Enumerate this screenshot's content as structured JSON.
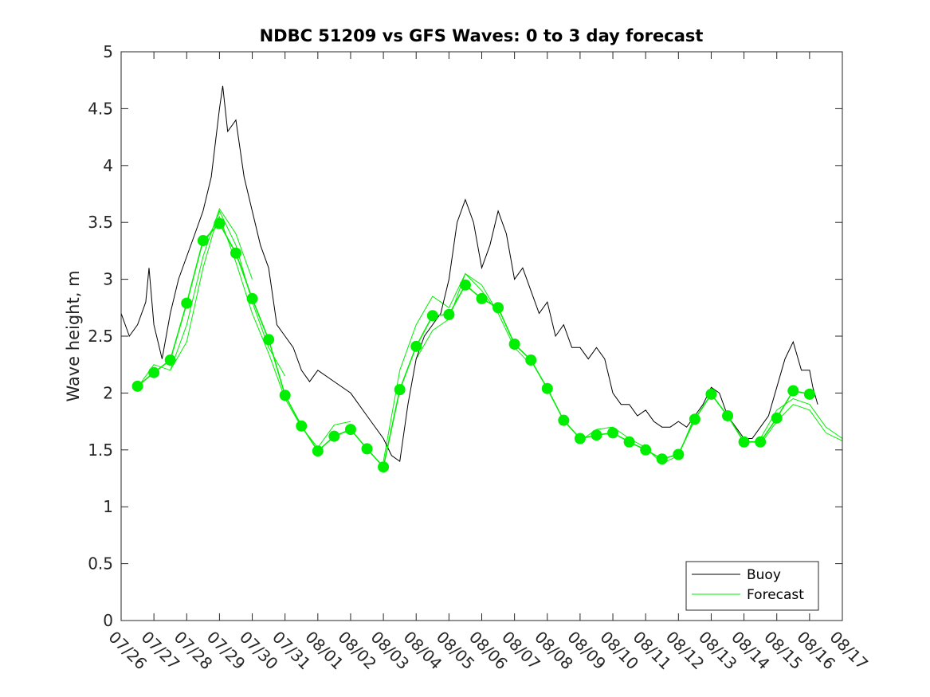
{
  "chart_data": {
    "type": "line",
    "title": "NDBC 51209 vs GFS Waves: 0 to 3 day forecast",
    "xlabel": "",
    "ylabel": "Wave height, m",
    "xlim": [
      0,
      22
    ],
    "ylim": [
      0,
      5
    ],
    "yticks": [
      0,
      0.5,
      1,
      1.5,
      2,
      2.5,
      3,
      3.5,
      4,
      4.5,
      5
    ],
    "ytick_labels": [
      "0",
      "0.5",
      "1",
      "1.5",
      "2",
      "2.5",
      "3",
      "3.5",
      "4",
      "4.5",
      "5"
    ],
    "xtick_labels": [
      "07/26",
      "07/27",
      "07/28",
      "07/29",
      "07/30",
      "07/31",
      "08/01",
      "08/02",
      "08/03",
      "08/04",
      "08/05",
      "08/06",
      "08/07",
      "08/08",
      "08/09",
      "08/10",
      "08/11",
      "08/12",
      "08/13",
      "08/14",
      "08/15",
      "08/16",
      "08/17"
    ],
    "legend": {
      "location": "bottom-right",
      "entries": [
        {
          "name": "Buoy",
          "color": "#000000"
        },
        {
          "name": "Forecast",
          "color": "#00ee00"
        }
      ]
    },
    "series": [
      {
        "name": "Buoy",
        "color": "#000000",
        "style": "thin noisy line",
        "x": [
          0.0,
          0.25,
          0.5,
          0.75,
          0.85,
          1.0,
          1.25,
          1.5,
          1.75,
          2.0,
          2.25,
          2.5,
          2.75,
          3.0,
          3.1,
          3.25,
          3.5,
          3.75,
          4.0,
          4.25,
          4.5,
          4.75,
          5.0,
          5.25,
          5.5,
          5.75,
          6.0,
          6.5,
          7.0,
          7.5,
          8.0,
          8.25,
          8.5,
          8.75,
          9.0,
          9.25,
          9.5,
          9.75,
          10.0,
          10.25,
          10.5,
          10.75,
          11.0,
          11.25,
          11.5,
          11.75,
          12.0,
          12.25,
          12.5,
          12.75,
          13.0,
          13.25,
          13.5,
          13.75,
          14.0,
          14.25,
          14.5,
          14.75,
          15.0,
          15.25,
          15.5,
          15.75,
          16.0,
          16.25,
          16.5,
          16.75,
          17.0,
          17.25,
          17.5,
          17.75,
          18.0,
          18.25,
          18.5,
          18.75,
          19.0,
          19.25,
          19.5,
          19.75,
          20.0,
          20.25,
          20.5,
          20.75,
          21.0,
          21.1,
          21.25
        ],
        "y": [
          2.7,
          2.5,
          2.6,
          2.8,
          3.1,
          2.6,
          2.3,
          2.7,
          3.0,
          3.2,
          3.4,
          3.6,
          3.9,
          4.5,
          4.7,
          4.3,
          4.4,
          3.9,
          3.6,
          3.3,
          3.1,
          2.6,
          2.5,
          2.4,
          2.2,
          2.1,
          2.2,
          2.1,
          2.0,
          1.8,
          1.6,
          1.45,
          1.4,
          1.9,
          2.3,
          2.5,
          2.6,
          2.7,
          3.0,
          3.5,
          3.7,
          3.5,
          3.1,
          3.3,
          3.6,
          3.4,
          3.0,
          3.1,
          2.9,
          2.7,
          2.8,
          2.5,
          2.6,
          2.4,
          2.4,
          2.3,
          2.4,
          2.3,
          2.0,
          1.9,
          1.9,
          1.8,
          1.85,
          1.75,
          1.7,
          1.7,
          1.75,
          1.7,
          1.8,
          1.9,
          2.05,
          2.0,
          1.8,
          1.7,
          1.6,
          1.6,
          1.7,
          1.8,
          2.05,
          2.3,
          2.45,
          2.2,
          2.2,
          2.05,
          1.9
        ]
      },
      {
        "name": "Forecast",
        "color": "#00ee00",
        "style": "line with markers every 12 h",
        "x": [
          0.5,
          1.0,
          1.5,
          2.0,
          2.5,
          3.0,
          3.5,
          4.0,
          4.5,
          5.0,
          5.5,
          6.0,
          6.5,
          7.0,
          7.5,
          8.0,
          8.5,
          9.0,
          9.5,
          10.0,
          10.5,
          11.0,
          11.5,
          12.0,
          12.5,
          13.0,
          13.5,
          14.0,
          14.5,
          15.0,
          15.5,
          16.0,
          16.5,
          17.0,
          17.5,
          18.0,
          18.5,
          19.0,
          19.5,
          20.0,
          20.5,
          21.0
        ],
        "y": [
          2.06,
          2.18,
          2.29,
          2.79,
          3.34,
          3.49,
          3.23,
          2.83,
          2.47,
          1.98,
          1.71,
          1.49,
          1.62,
          1.68,
          1.51,
          1.35,
          2.03,
          2.41,
          2.68,
          2.69,
          2.95,
          2.83,
          2.75,
          2.43,
          2.29,
          2.04,
          1.76,
          1.6,
          1.63,
          1.65,
          1.57,
          1.5,
          1.42,
          1.46,
          1.77,
          1.99,
          1.8,
          1.57,
          1.57,
          1.78,
          2.02,
          1.99
        ]
      }
    ],
    "forecast_ensemble": {
      "note": "additional thin forecast runs drawn without markers",
      "runs": [
        {
          "x": [
            0.5,
            1.0,
            1.5,
            2.0,
            2.5,
            3.0,
            3.5,
            4.0
          ],
          "y": [
            2.05,
            2.25,
            2.2,
            2.6,
            3.2,
            3.62,
            3.4,
            3.0
          ]
        },
        {
          "x": [
            1.5,
            2.0,
            2.5,
            3.0,
            3.5,
            4.0,
            4.5,
            5.0
          ],
          "y": [
            2.2,
            2.45,
            3.1,
            3.6,
            3.3,
            2.8,
            2.4,
            2.15
          ]
        },
        {
          "x": [
            2.5,
            3.0,
            3.5,
            4.0,
            4.5,
            5.0,
            5.5,
            6.0,
            6.5,
            7.0
          ],
          "y": [
            3.3,
            3.55,
            3.15,
            2.7,
            2.35,
            1.95,
            1.7,
            1.52,
            1.72,
            1.75
          ]
        },
        {
          "x": [
            8.0,
            8.5,
            9.0,
            9.5,
            10.0,
            10.5,
            11.0,
            11.5
          ],
          "y": [
            1.4,
            2.2,
            2.6,
            2.85,
            2.75,
            3.05,
            2.9,
            2.7
          ]
        },
        {
          "x": [
            9.0,
            9.5,
            10.0,
            10.5,
            11.0,
            11.5,
            12.0,
            12.5
          ],
          "y": [
            2.3,
            2.55,
            2.65,
            3.05,
            2.95,
            2.7,
            2.4,
            2.25
          ]
        },
        {
          "x": [
            14.0,
            14.5,
            15.0,
            15.5,
            16.0,
            16.5,
            17.0,
            17.5
          ],
          "y": [
            1.58,
            1.68,
            1.7,
            1.6,
            1.52,
            1.38,
            1.45,
            1.8
          ]
        },
        {
          "x": [
            19.5,
            20.0,
            20.5,
            21.0,
            21.5,
            22.0
          ],
          "y": [
            1.6,
            1.85,
            1.95,
            1.9,
            1.7,
            1.6
          ]
        },
        {
          "x": [
            19.5,
            20.0,
            20.5,
            21.0,
            21.5,
            22.0
          ],
          "y": [
            1.55,
            1.75,
            1.9,
            1.85,
            1.65,
            1.58
          ]
        }
      ]
    }
  }
}
